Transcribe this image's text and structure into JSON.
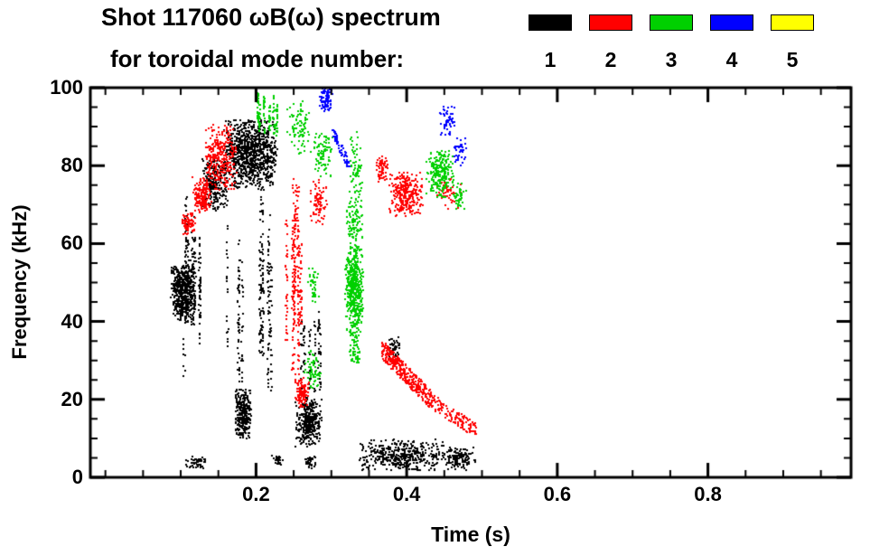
{
  "title": {
    "line1": "Shot 117060 ωB(ω) spectrum",
    "line2": "for toroidal mode number:"
  },
  "legend": {
    "entries": [
      {
        "label": "1",
        "color": "#000000"
      },
      {
        "label": "2",
        "color": "#ff0000"
      },
      {
        "label": "3",
        "color": "#00d000"
      },
      {
        "label": "4",
        "color": "#0000ff"
      },
      {
        "label": "5",
        "color": "#ffff00"
      }
    ]
  },
  "chart_data": {
    "type": "scatter",
    "title": "Shot 117060 ωB(ω) spectrum for toroidal mode number",
    "xlabel": "Time (s)",
    "ylabel": "Frequency (kHz)",
    "xlim": [
      -0.02,
      0.99
    ],
    "ylim": [
      0,
      100
    ],
    "x_ticks": [
      0.2,
      0.4,
      0.6,
      0.8
    ],
    "x_tick_labels": [
      "0.2",
      "0.4",
      "0.6",
      "0.8"
    ],
    "x_minor_step": 0.05,
    "y_ticks": [
      0,
      20,
      40,
      60,
      80,
      100
    ],
    "y_tick_labels": [
      "0",
      "20",
      "40",
      "60",
      "80",
      "100"
    ],
    "y_minor_step": 5,
    "grid": false,
    "legend_position": "top-right",
    "series": [
      {
        "name": "n=1",
        "color": "#000000",
        "clusters": [
          {
            "style": "blob",
            "t": [
              0.086,
              0.118
            ],
            "f": [
              40,
              54.5
            ],
            "n": 480
          },
          {
            "style": "streak",
            "t": [
              0.103,
              0.141
            ],
            "f": [
              25,
              73
            ],
            "n": 220,
            "lines": 9
          },
          {
            "style": "blob",
            "t": [
              0.127,
              0.16
            ],
            "f": [
              68,
              83
            ],
            "n": 260
          },
          {
            "style": "blob",
            "t": [
              0.156,
              0.227
            ],
            "f": [
              74,
              92
            ],
            "n": 950
          },
          {
            "style": "streak",
            "t": [
              0.16,
              0.226
            ],
            "f": [
              14,
              74
            ],
            "n": 280,
            "lines": 11
          },
          {
            "style": "blob",
            "t": [
              0.171,
              0.193
            ],
            "f": [
              10,
              23
            ],
            "n": 260
          },
          {
            "style": "blob",
            "t": [
              0.251,
              0.286
            ],
            "f": [
              8,
              21
            ],
            "n": 330
          },
          {
            "style": "streak",
            "t": [
              0.252,
              0.285
            ],
            "f": [
              21,
              46
            ],
            "n": 100,
            "lines": 6
          },
          {
            "style": "blob",
            "t": [
              0.335,
              0.45
            ],
            "f": [
              2,
              10
            ],
            "n": 420
          },
          {
            "style": "blob",
            "t": [
              0.448,
              0.49
            ],
            "f": [
              2,
              8
            ],
            "n": 130
          },
          {
            "style": "blob",
            "t": [
              0.106,
              0.136
            ],
            "f": [
              2.5,
              5.5
            ],
            "n": 45
          },
          {
            "style": "blob",
            "t": [
              0.22,
              0.234
            ],
            "f": [
              3,
              6
            ],
            "n": 25
          },
          {
            "style": "blob",
            "t": [
              0.262,
              0.278
            ],
            "f": [
              2.5,
              5.5
            ],
            "n": 35
          },
          {
            "style": "blob",
            "t": [
              0.376,
              0.39
            ],
            "f": [
              31,
              37
            ],
            "n": 40
          }
        ]
      },
      {
        "name": "n=2",
        "color": "#ff0000",
        "clusters": [
          {
            "style": "blob",
            "t": [
              0.1,
              0.118
            ],
            "f": [
              62.5,
              68
            ],
            "n": 80
          },
          {
            "style": "blob",
            "t": [
              0.114,
              0.139
            ],
            "f": [
              68,
              77.5
            ],
            "n": 170
          },
          {
            "style": "blob",
            "t": [
              0.131,
              0.173
            ],
            "f": [
              74,
              91
            ],
            "n": 300
          },
          {
            "style": "streak",
            "t": [
              0.234,
              0.26
            ],
            "f": [
              24,
              78
            ],
            "n": 260,
            "lines": 8
          },
          {
            "style": "blob",
            "t": [
              0.251,
              0.269
            ],
            "f": [
              18,
              26
            ],
            "n": 100
          },
          {
            "style": "blob",
            "t": [
              0.27,
              0.293
            ],
            "f": [
              65,
              77
            ],
            "n": 80
          },
          {
            "style": "blob",
            "t": [
              0.358,
              0.374
            ],
            "f": [
              76,
              83
            ],
            "n": 60
          },
          {
            "style": "blob",
            "t": [
              0.376,
              0.42
            ],
            "f": [
              67,
              78.5
            ],
            "n": 300
          },
          {
            "style": "band",
            "t": [
              0.366,
              0.432
            ],
            "f_start": 33,
            "f_end": 20,
            "thick": 5,
            "n": 340
          },
          {
            "style": "band",
            "t": [
              0.43,
              0.492
            ],
            "f_start": 20,
            "f_end": 12,
            "thick": 4,
            "n": 120
          },
          {
            "style": "blob",
            "t": [
              0.438,
              0.472
            ],
            "f": [
              69,
              77
            ],
            "n": 50
          }
        ]
      },
      {
        "name": "n=3",
        "color": "#00d000",
        "clusters": [
          {
            "style": "streak",
            "t": [
              0.196,
              0.238
            ],
            "f": [
              87,
              99
            ],
            "n": 130,
            "lines": 6
          },
          {
            "style": "blob",
            "t": [
              0.24,
              0.272
            ],
            "f": [
              83,
              97
            ],
            "n": 90
          },
          {
            "style": "blob",
            "t": [
              0.276,
              0.301
            ],
            "f": [
              77,
              89
            ],
            "n": 85
          },
          {
            "style": "blob",
            "t": [
              0.262,
              0.285
            ],
            "f": [
              23,
              33
            ],
            "n": 65
          },
          {
            "style": "blob",
            "t": [
              0.267,
              0.283
            ],
            "f": [
              45,
              54
            ],
            "n": 40
          },
          {
            "style": "blob",
            "t": [
              0.317,
              0.341
            ],
            "f": [
              37,
              60
            ],
            "n": 480
          },
          {
            "style": "blob",
            "t": [
              0.319,
              0.341
            ],
            "f": [
              59,
              72
            ],
            "n": 90
          },
          {
            "style": "blob",
            "t": [
              0.321,
              0.339
            ],
            "f": [
              29,
              38
            ],
            "n": 55
          },
          {
            "style": "blob",
            "t": [
              0.323,
              0.341
            ],
            "f": [
              72,
              89
            ],
            "n": 65
          },
          {
            "style": "blob",
            "t": [
              0.425,
              0.461
            ],
            "f": [
              72,
              84
            ],
            "n": 230
          },
          {
            "style": "blob",
            "t": [
              0.458,
              0.478
            ],
            "f": [
              69,
              76
            ],
            "n": 45
          }
        ]
      },
      {
        "name": "n=4",
        "color": "#0000ff",
        "clusters": [
          {
            "style": "blob",
            "t": [
              0.283,
              0.301
            ],
            "f": [
              94,
              100
            ],
            "n": 80
          },
          {
            "style": "band",
            "t": [
              0.3,
              0.323
            ],
            "f_start": 89,
            "f_end": 80,
            "thick": 3,
            "n": 60
          },
          {
            "style": "blob",
            "t": [
              0.442,
              0.463
            ],
            "f": [
              88,
              96
            ],
            "n": 50
          },
          {
            "style": "blob",
            "t": [
              0.461,
              0.478
            ],
            "f": [
              80,
              88
            ],
            "n": 40
          }
        ]
      },
      {
        "name": "n=5",
        "color": "#ffff00",
        "clusters": []
      }
    ]
  }
}
